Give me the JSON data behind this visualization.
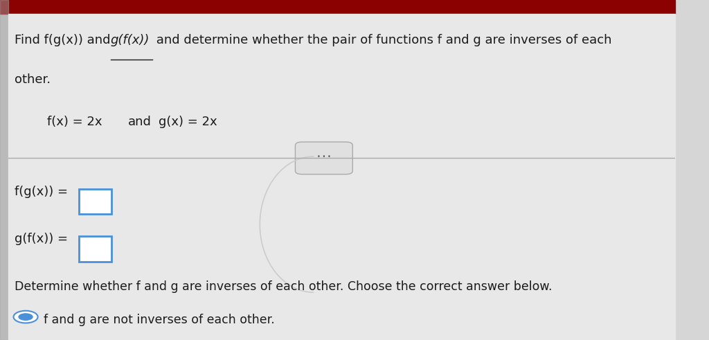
{
  "bg_color": "#d6d6d6",
  "top_bar_color": "#8b0000",
  "top_bar_height": 0.04,
  "left_bar_color": "#a0a0a0",
  "title_line1_part1": "Find f(g(x)) and ",
  "title_line1_underline": "g(f(x))",
  "title_line1_part2": " and determine whether the pair of functions f and g are inverses of each",
  "title_line2": "other.",
  "fx_label": "f(x) = 2x",
  "gx_label": "g(x) = 2x",
  "and_label": "and",
  "fg_label": "f(g(x)) =",
  "gf_label": "g(f(x)) =",
  "determine_text": "Determine whether f and g are inverses of each other. Choose the correct answer below.",
  "answer_text": "f and g are not inverses of each other.",
  "title_fontsize": 13,
  "body_fontsize": 13,
  "text_color": "#1a1a1a",
  "box_color": "#4a90d9",
  "radio_color": "#4a90d9"
}
